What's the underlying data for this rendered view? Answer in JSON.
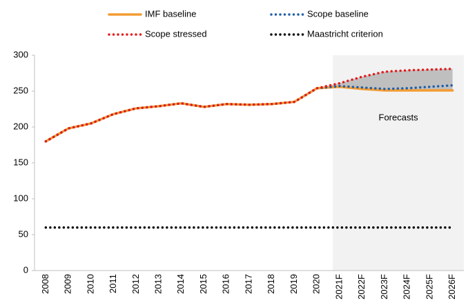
{
  "chart_data": {
    "type": "line",
    "categories": [
      "2008",
      "2009",
      "2010",
      "2011",
      "2012",
      "2013",
      "2014",
      "2015",
      "2016",
      "2017",
      "2018",
      "2019",
      "2020",
      "2021F",
      "2022F",
      "2023F",
      "2024F",
      "2025F",
      "2026F"
    ],
    "series": [
      {
        "name": "IMF baseline",
        "color": "#f39c33",
        "style": "solid",
        "values": [
          180,
          198,
          205,
          218,
          226,
          229,
          233,
          228,
          232,
          231,
          232,
          235,
          254,
          256,
          253,
          251,
          251,
          251,
          251
        ]
      },
      {
        "name": "Scope baseline",
        "color": "#1f5fa8",
        "style": "dotted",
        "values": [
          180,
          198,
          205,
          218,
          226,
          229,
          233,
          228,
          232,
          231,
          232,
          235,
          254,
          257,
          255,
          253,
          254,
          256,
          258
        ]
      },
      {
        "name": "Scope stressed",
        "color": "#e31a1c",
        "style": "dotted",
        "values": [
          180,
          198,
          205,
          218,
          226,
          229,
          233,
          228,
          232,
          231,
          232,
          235,
          254,
          261,
          270,
          277,
          279,
          280,
          281
        ]
      },
      {
        "name": "Maastricht criterion",
        "color": "#000000",
        "style": "dotted",
        "values": [
          60,
          60,
          60,
          60,
          60,
          60,
          60,
          60,
          60,
          60,
          60,
          60,
          60,
          60,
          60,
          60,
          60,
          60,
          60
        ]
      }
    ],
    "annotation": "Forecasts",
    "ylim": [
      0,
      300
    ],
    "yticks": [
      0,
      50,
      100,
      150,
      200,
      250,
      300
    ],
    "grid": false
  }
}
